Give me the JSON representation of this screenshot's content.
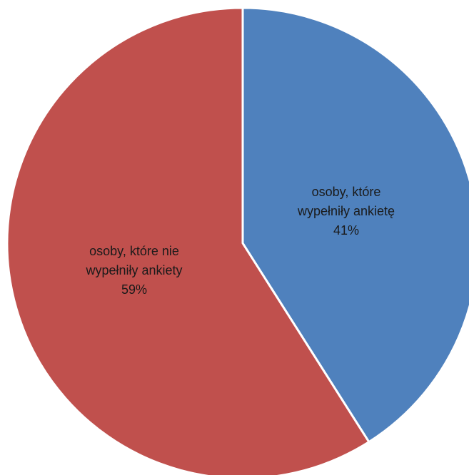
{
  "chart_data": {
    "type": "pie",
    "title": "",
    "categories": [
      "osoby, które wypełniły ankietę",
      "osoby, które nie wypełniły ankiety"
    ],
    "values": [
      41,
      59
    ],
    "unit": "%",
    "series": [
      {
        "values": [
          41,
          59
        ]
      }
    ],
    "slices": [
      {
        "label_lines": [
          "osoby, które",
          "wypełniły ankietę"
        ],
        "value_text": "41%",
        "value": 41,
        "color": "#4f81bd"
      },
      {
        "label_lines": [
          "osoby, które nie",
          "wypełniły ankiety"
        ],
        "value_text": "59%",
        "value": 59,
        "color": "#c0504d"
      }
    ],
    "legend": "none",
    "start_angle": "12 o'clock",
    "direction": "clockwise",
    "slice_border_color": "#ffffff"
  }
}
